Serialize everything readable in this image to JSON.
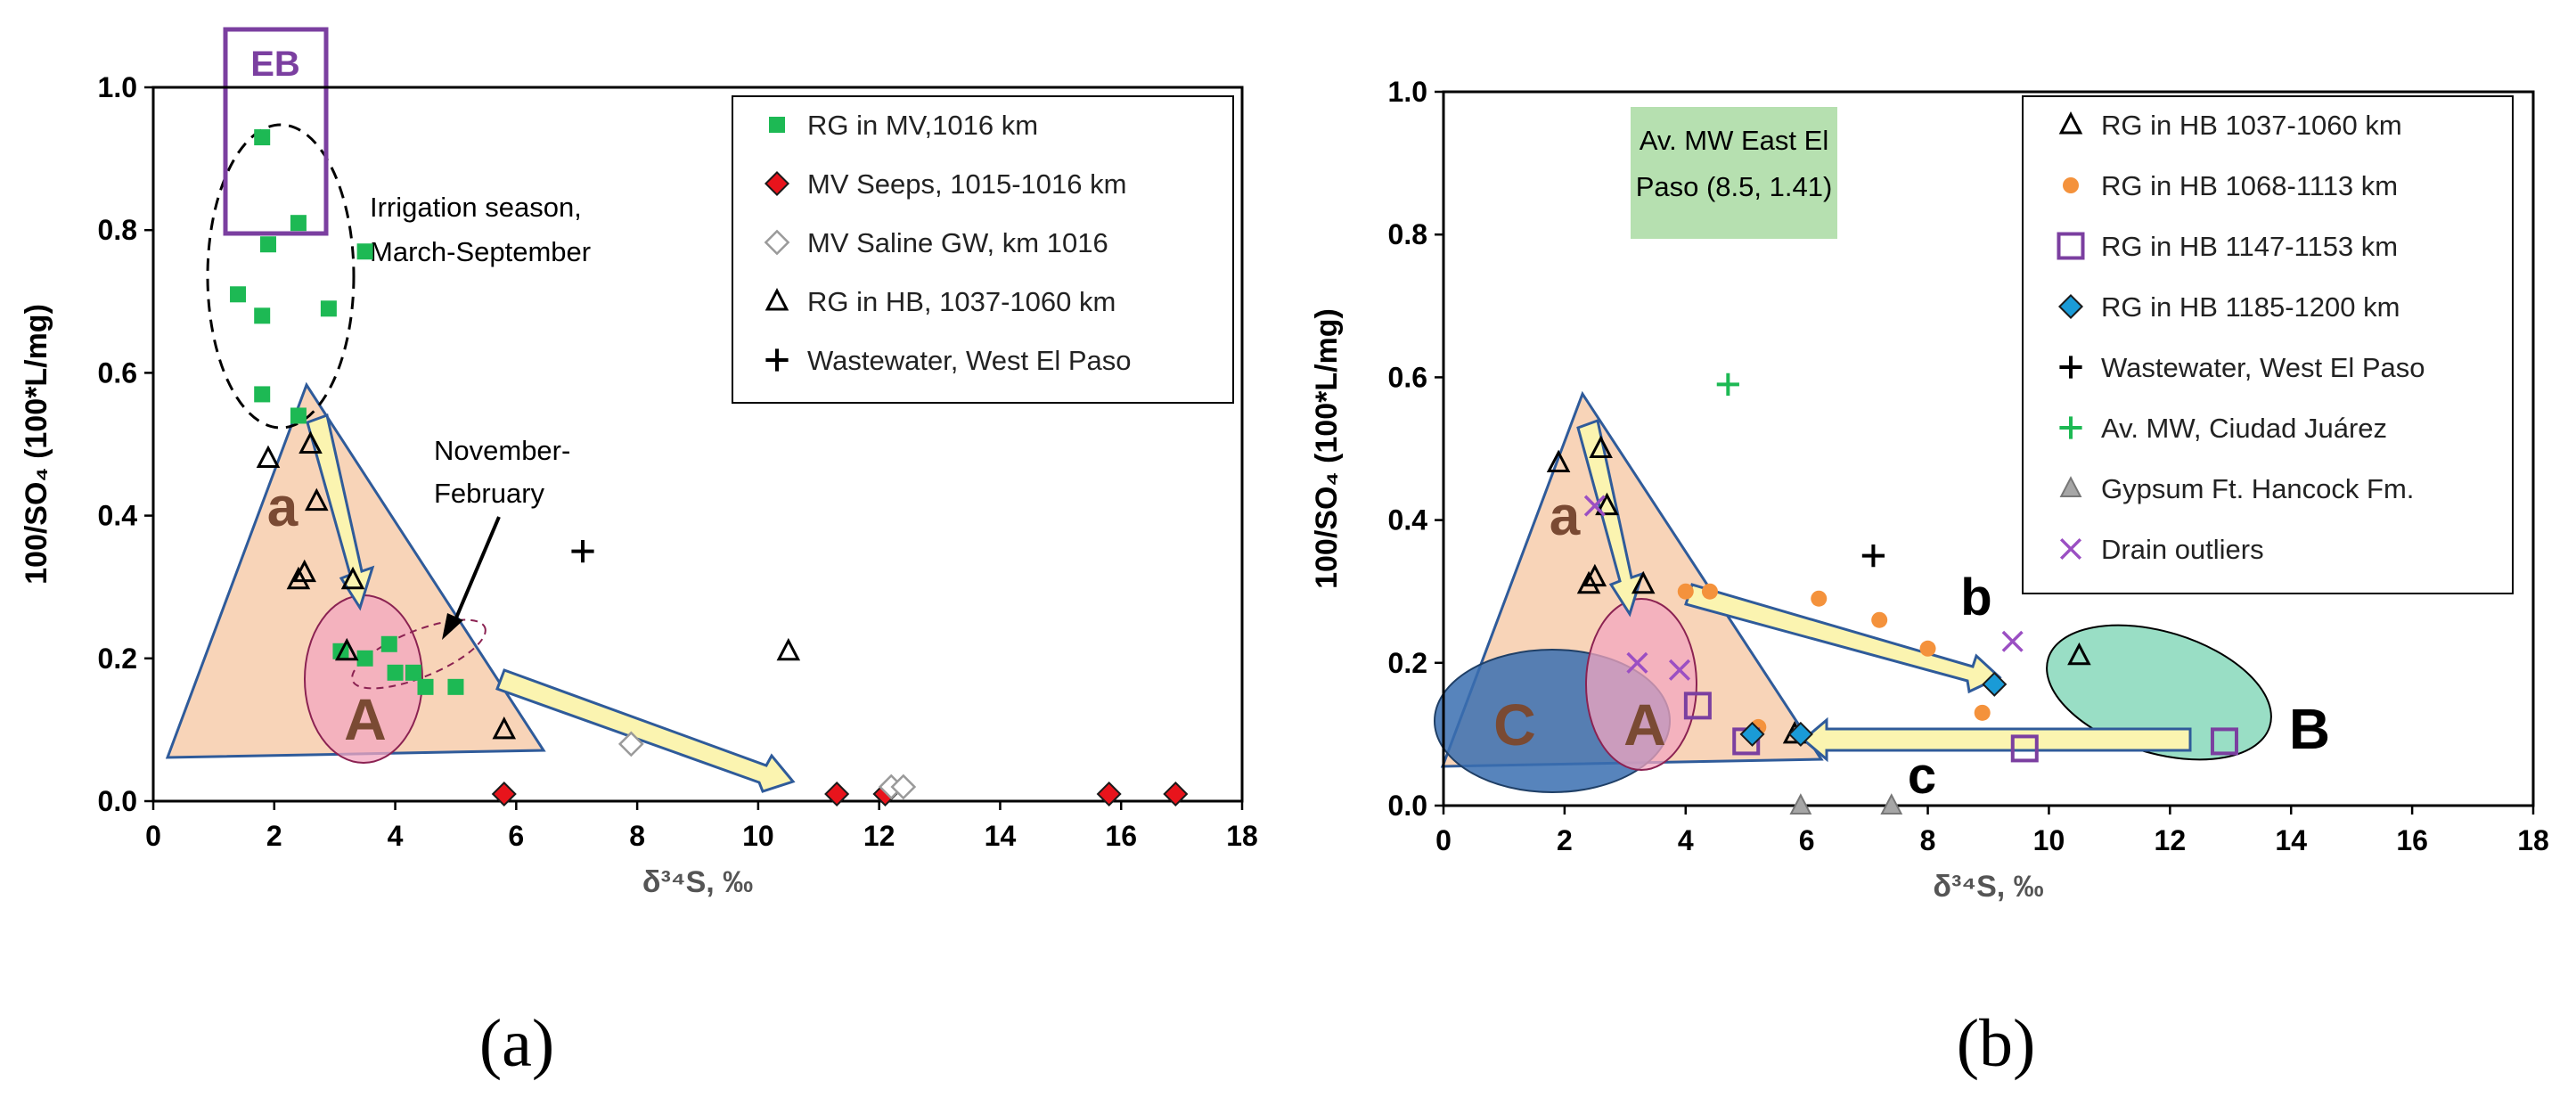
{
  "panels": {
    "a": "(a)",
    "b": "(b)"
  },
  "chart_data": [
    {
      "type": "scatter",
      "panel": "(a)",
      "xlabel": "δ³⁴S, ‰",
      "ylabel": "100/SO₄ (100*L/mg)",
      "xlim": [
        0,
        18
      ],
      "ylim": [
        0,
        1.0
      ],
      "xticks": [
        "0",
        "2",
        "4",
        "6",
        "8",
        "10",
        "12",
        "14",
        "16",
        "18"
      ],
      "yticks": [
        "0.0",
        "0.2",
        "0.4",
        "0.6",
        "0.8",
        "1.0"
      ],
      "series": [
        {
          "name": "RG in MV,1016 km",
          "marker": "square",
          "color": "#1db954",
          "points": [
            [
              1.8,
              0.93
            ],
            [
              2.4,
              0.81
            ],
            [
              1.9,
              0.78
            ],
            [
              3.5,
              0.77
            ],
            [
              1.4,
              0.71
            ],
            [
              1.8,
              0.68
            ],
            [
              2.9,
              0.69
            ],
            [
              1.8,
              0.57
            ],
            [
              2.4,
              0.54
            ],
            [
              3.1,
              0.21
            ],
            [
              3.5,
              0.2
            ],
            [
              3.9,
              0.22
            ],
            [
              4.0,
              0.18
            ],
            [
              4.3,
              0.18
            ],
            [
              4.5,
              0.16
            ],
            [
              5.0,
              0.16
            ]
          ]
        },
        {
          "name": "MV Seeps, 1015-1016 km",
          "marker": "diamond",
          "color": "#e8141c",
          "points": [
            [
              5.8,
              0.01
            ],
            [
              11.3,
              0.01
            ],
            [
              12.1,
              0.01
            ],
            [
              15.8,
              0.01
            ],
            [
              16.9,
              0.01
            ]
          ]
        },
        {
          "name": "MV Saline GW, km 1016",
          "marker": "diamond-open",
          "color": "#9a9a9a",
          "points": [
            [
              7.9,
              0.08
            ],
            [
              12.2,
              0.02
            ],
            [
              12.4,
              0.02
            ]
          ]
        },
        {
          "name": "RG in HB, 1037-1060 km",
          "marker": "triangle-open",
          "color": "#000000",
          "points": [
            [
              1.9,
              0.48
            ],
            [
              2.6,
              0.5
            ],
            [
              2.7,
              0.42
            ],
            [
              2.4,
              0.31
            ],
            [
              2.5,
              0.32
            ],
            [
              3.3,
              0.31
            ],
            [
              3.2,
              0.21
            ],
            [
              5.8,
              0.1
            ],
            [
              10.5,
              0.21
            ]
          ]
        },
        {
          "name": "Wastewater, West El Paso",
          "marker": "plus",
          "color": "#000000",
          "points": [
            [
              7.1,
              0.35
            ]
          ]
        }
      ],
      "annotations": {
        "eb": "EB",
        "irrigation_1": "Irrigation season,",
        "irrigation_2": "March-September",
        "novfeb_1": "November-",
        "novfeb_2": "February",
        "a_small": "a",
        "a_big": "A"
      }
    },
    {
      "type": "scatter",
      "panel": "(b)",
      "xlabel": "δ³⁴S, ‰",
      "ylabel": "100/SO₄ (100*L/mg)",
      "xlim": [
        0,
        18
      ],
      "ylim": [
        0,
        1.0
      ],
      "xticks": [
        "0",
        "2",
        "4",
        "6",
        "8",
        "10",
        "12",
        "14",
        "16",
        "18"
      ],
      "yticks": [
        "0.0",
        "0.2",
        "0.4",
        "0.6",
        "0.8",
        "1.0"
      ],
      "series": [
        {
          "name": "RG in HB 1037-1060 km",
          "marker": "triangle-open",
          "color": "#000000",
          "points": [
            [
              1.9,
              0.48
            ],
            [
              2.6,
              0.5
            ],
            [
              2.7,
              0.42
            ],
            [
              2.4,
              0.31
            ],
            [
              2.5,
              0.32
            ],
            [
              3.3,
              0.31
            ],
            [
              5.8,
              0.1
            ],
            [
              10.5,
              0.21
            ]
          ]
        },
        {
          "name": "RG in HB 1068-1113 km",
          "marker": "circle",
          "color": "#f4923c",
          "points": [
            [
              4.0,
              0.3
            ],
            [
              4.4,
              0.3
            ],
            [
              6.2,
              0.29
            ],
            [
              7.2,
              0.26
            ],
            [
              8.0,
              0.22
            ],
            [
              8.9,
              0.13
            ],
            [
              5.2,
              0.11
            ]
          ]
        },
        {
          "name": "RG  in HB 1147-1153 km",
          "marker": "square-open",
          "color": "#7b3fa0",
          "points": [
            [
              4.2,
              0.14
            ],
            [
              5.0,
              0.09
            ],
            [
              9.6,
              0.08
            ],
            [
              12.9,
              0.09
            ]
          ]
        },
        {
          "name": "RG in HB 1185-1200 km",
          "marker": "diamond",
          "color": "#1a9bd7",
          "points": [
            [
              9.1,
              0.17
            ],
            [
              5.1,
              0.1
            ],
            [
              5.9,
              0.1
            ]
          ]
        },
        {
          "name": "Wastewater, West El Paso",
          "marker": "plus",
          "color": "#000000",
          "points": [
            [
              7.1,
              0.35
            ]
          ]
        },
        {
          "name": "Av. MW, Ciudad Juárez",
          "marker": "plus",
          "color": "#1db954",
          "points": [
            [
              4.7,
              0.59
            ]
          ]
        },
        {
          "name": "Gypsum Ft. Hancock Fm.",
          "marker": "triangle-grey",
          "color": "#a6a6a6",
          "points": [
            [
              5.9,
              0.0
            ],
            [
              7.4,
              0.0
            ]
          ]
        },
        {
          "name": "Drain outliers",
          "marker": "x",
          "color": "#9b4fc3",
          "points": [
            [
              9.4,
              0.23
            ],
            [
              2.5,
              0.42
            ],
            [
              3.2,
              0.2
            ],
            [
              3.9,
              0.19
            ]
          ]
        }
      ],
      "annotations": {
        "mw_box_1": "Av. MW East El",
        "mw_box_2": "Paso (8.5, 1.41)",
        "a_small": "a",
        "a_big": "A",
        "b_small": "b",
        "c_small": "c",
        "c_big": "C",
        "b_big": "B"
      }
    }
  ]
}
